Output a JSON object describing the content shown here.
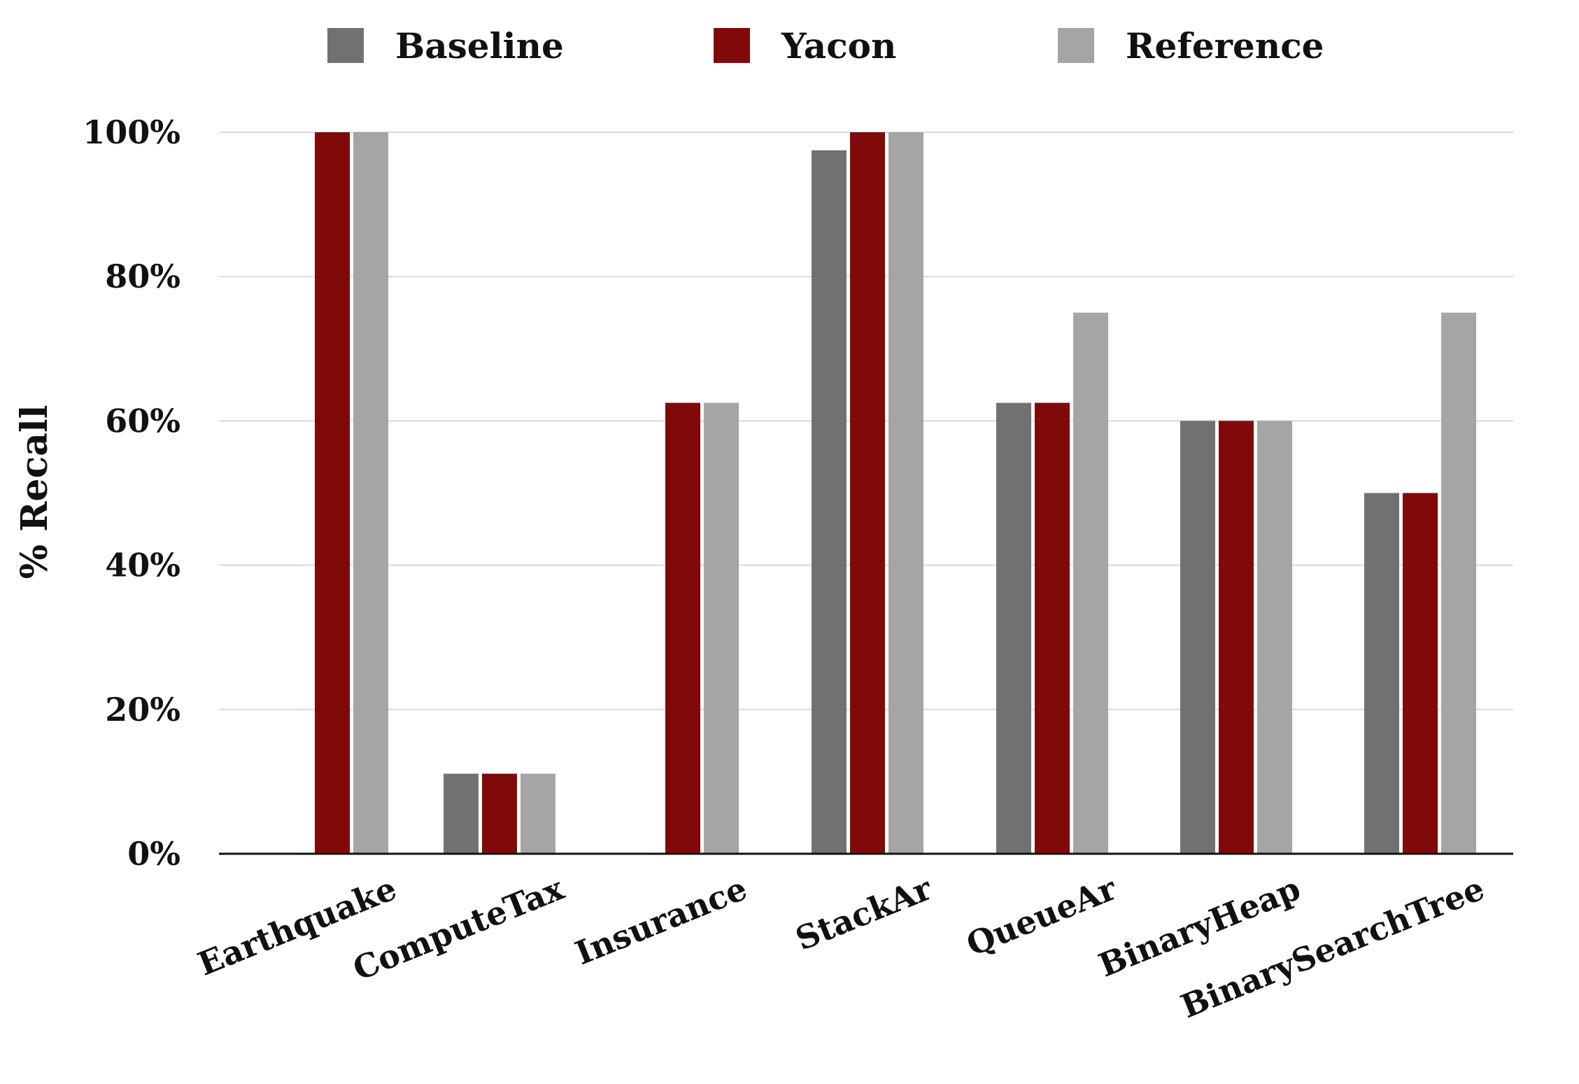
{
  "chart_data": {
    "type": "bar",
    "ylabel": "% Recall",
    "xlabel": "",
    "title": "",
    "ylim": [
      0,
      100
    ],
    "yticks": [
      0,
      20,
      40,
      60,
      80,
      100
    ],
    "ytick_labels": [
      "0%",
      "20%",
      "40%",
      "60%",
      "80%",
      "100%"
    ],
    "grid": true,
    "legend_position": "top-center",
    "categories": [
      "Earthquake",
      "ComputeTax",
      "Insurance",
      "StackAr",
      "QueueAr",
      "BinaryHeap",
      "BinarySearchTree"
    ],
    "series": [
      {
        "name": "Baseline",
        "color": "#6f7270",
        "values": [
          0,
          11.1,
          0,
          97.5,
          62.5,
          60,
          50
        ]
      },
      {
        "name": "Yacon",
        "color": "#800a0a",
        "values": [
          100,
          11.1,
          62.5,
          100,
          62.5,
          60,
          50
        ]
      },
      {
        "name": "Reference",
        "color": "#a5a5a5",
        "values": [
          100,
          11.1,
          62.5,
          100,
          75,
          60,
          75
        ]
      }
    ]
  }
}
